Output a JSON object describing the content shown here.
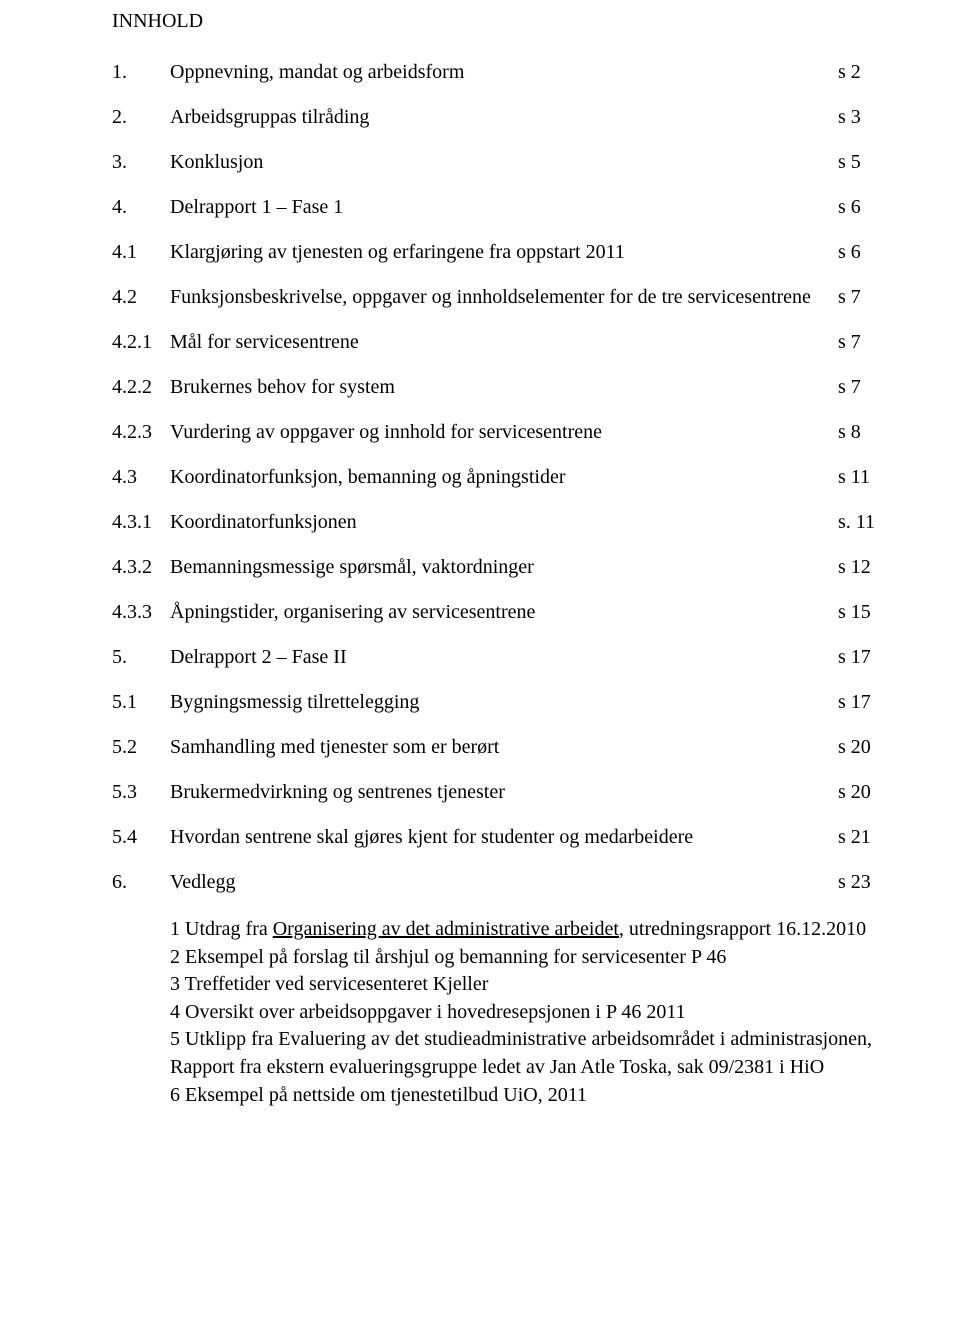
{
  "heading": "INNHOLD",
  "toc": [
    {
      "num": "1.",
      "txt": "Oppnevning, mandat og arbeidsform",
      "pg": "s 2"
    },
    {
      "num": "2.",
      "txt": "Arbeidsgruppas tilråding",
      "pg": "s 3"
    },
    {
      "num": "3.",
      "txt": "Konklusjon",
      "pg": "s 5"
    },
    {
      "num": "4.",
      "txt": "Delrapport 1 – Fase 1",
      "pg": "s 6"
    },
    {
      "num": "4.1",
      "txt": "Klargjøring av tjenesten og erfaringene fra oppstart 2011",
      "pg": "s 6"
    },
    {
      "num": "4.2",
      "txt": "Funksjonsbeskrivelse, oppgaver og innholdselementer for de tre servicesentrene",
      "pg": "s 7"
    },
    {
      "num": "4.2.1",
      "txt": "Mål for servicesentrene",
      "pg": "s 7"
    },
    {
      "num": "4.2.2",
      "txt": "Brukernes behov for system",
      "pg": "s 7"
    },
    {
      "num": "4.2.3",
      "txt": "Vurdering av oppgaver og innhold for servicesentrene",
      "pg": "s 8"
    },
    {
      "num": "4.3",
      "txt": "Koordinatorfunksjon, bemanning og åpningstider",
      "pg": "s 11"
    },
    {
      "num": "4.3.1",
      "txt": "Koordinatorfunksjonen",
      "pg": "s. 11"
    },
    {
      "num": "4.3.2",
      "txt": "Bemanningsmessige spørsmål, vaktordninger",
      "pg": "s 12"
    },
    {
      "num": "4.3.3",
      "txt": "Åpningstider, organisering av servicesentrene",
      "pg": "s 15"
    },
    {
      "num": "5.",
      "txt": "Delrapport 2 – Fase II",
      "pg": "s 17"
    },
    {
      "num": "5.1",
      "txt": "Bygningsmessig tilrettelegging",
      "pg": "s 17"
    },
    {
      "num": "5.2",
      "txt": "Samhandling med tjenester som er berørt",
      "pg": "s 20"
    },
    {
      "num": "5.3",
      "txt": "Brukermedvirkning og sentrenes tjenester",
      "pg": "s 20"
    },
    {
      "num": "5.4",
      "txt": "Hvordan sentrene skal gjøres kjent for studenter og medarbeidere",
      "pg": "s 21"
    },
    {
      "num": "6.",
      "txt": "Vedlegg",
      "pg": "s 23"
    }
  ],
  "appendix": {
    "line1_prefix": "1 Utdrag fra ",
    "line1_underlined": "Organisering av det administrative arbeidet",
    "line1_suffix": ", utredningsrapport 16.12.2010",
    "line2": "2 Eksempel på forslag til årshjul og bemanning for servicesenter P 46",
    "line3": "3 Treffetider ved servicesenteret Kjeller",
    "line4": "4 Oversikt over arbeidsoppgaver i hovedresepsjonen i P 46 2011",
    "line5": "5 Utklipp fra Evaluering av det studieadministrative arbeidsområdet i administrasjonen, Rapport fra ekstern evalueringsgruppe ledet av Jan Atle Toska, sak 09/2381 i HiO",
    "line6": "6 Eksempel på nettside om tjenestetilbud UiO, 2011"
  }
}
